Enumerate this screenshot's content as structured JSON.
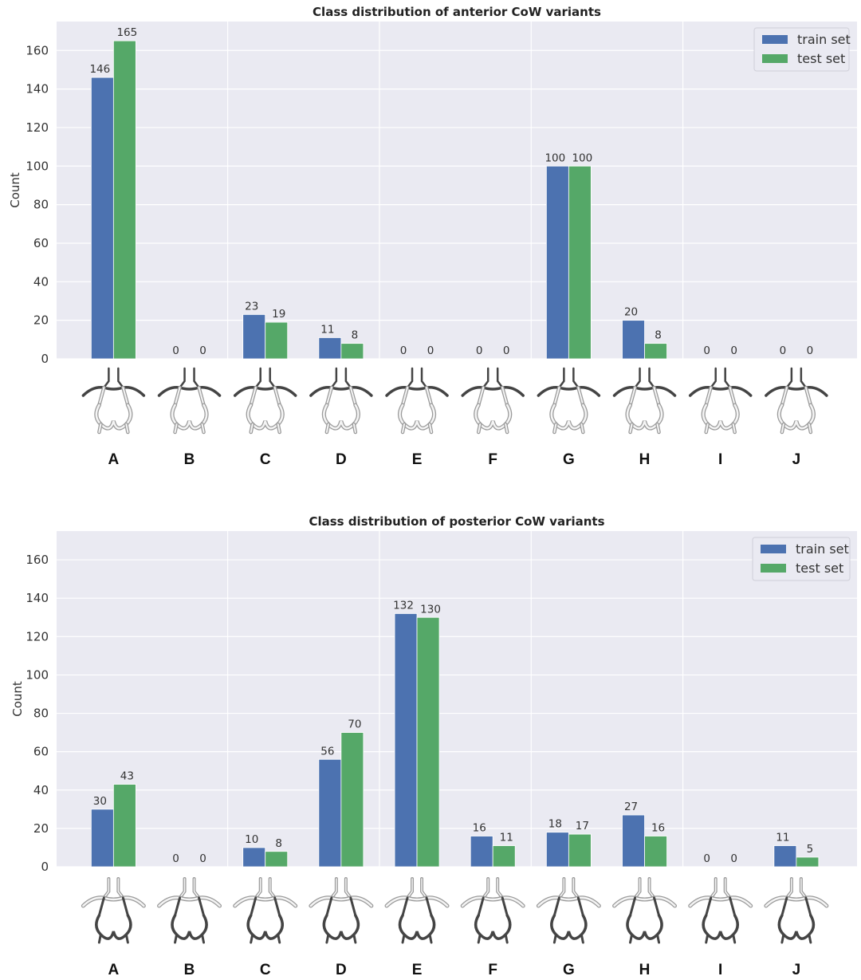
{
  "colors": {
    "plot_background": "#EAEAF2",
    "grid": "#FFFFFF",
    "train": "#4C72B0",
    "test": "#55A868",
    "vessel_dark": "#444444",
    "vessel_light": "#C8C8C8"
  },
  "chart_data": [
    {
      "type": "bar",
      "title": "Class distribution of anterior CoW variants",
      "xlabel": "",
      "ylabel": "Count",
      "ylim": [
        0,
        175
      ],
      "yticks": [
        0,
        20,
        40,
        60,
        80,
        100,
        120,
        140,
        160
      ],
      "grid": true,
      "legend_position": "top-right",
      "categories": [
        "A",
        "B",
        "C",
        "D",
        "E",
        "F",
        "G",
        "H",
        "I",
        "J"
      ],
      "series": [
        {
          "name": "train set",
          "color": "#4C72B0",
          "values": [
            146,
            0,
            23,
            11,
            0,
            0,
            100,
            20,
            0,
            0
          ]
        },
        {
          "name": "test set",
          "color": "#55A868",
          "values": [
            165,
            0,
            19,
            8,
            0,
            0,
            100,
            8,
            0,
            0
          ]
        }
      ],
      "icon_kind": "anterior"
    },
    {
      "type": "bar",
      "title": "Class distribution of posterior CoW variants",
      "xlabel": "",
      "ylabel": "Count",
      "ylim": [
        0,
        175
      ],
      "yticks": [
        0,
        20,
        40,
        60,
        80,
        100,
        120,
        140,
        160
      ],
      "grid": true,
      "legend_position": "top-right",
      "categories": [
        "A",
        "B",
        "C",
        "D",
        "E",
        "F",
        "G",
        "H",
        "I",
        "J"
      ],
      "series": [
        {
          "name": "train set",
          "color": "#4C72B0",
          "values": [
            30,
            0,
            10,
            56,
            132,
            16,
            18,
            27,
            0,
            11
          ]
        },
        {
          "name": "test set",
          "color": "#55A868",
          "values": [
            43,
            0,
            8,
            70,
            130,
            11,
            17,
            16,
            0,
            5
          ]
        }
      ],
      "icon_kind": "posterior"
    }
  ]
}
